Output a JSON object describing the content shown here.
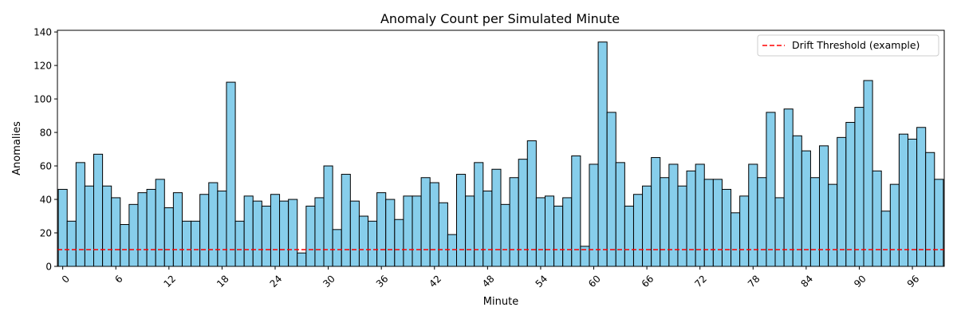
{
  "chart_data": {
    "type": "bar",
    "title": "Anomaly Count per Simulated Minute",
    "xlabel": "Minute",
    "ylabel": "Anomalies",
    "xlim": [
      -0.6,
      99.6
    ],
    "ylim": [
      0,
      141
    ],
    "x_ticks": [
      0,
      6,
      12,
      18,
      24,
      30,
      36,
      42,
      48,
      54,
      60,
      66,
      72,
      78,
      84,
      90,
      96
    ],
    "x_tick_labels": [
      "0",
      "6",
      "12",
      "18",
      "24",
      "30",
      "36",
      "42",
      "48",
      "54",
      "60",
      "66",
      "72",
      "78",
      "84",
      "90",
      "96"
    ],
    "y_ticks": [
      0,
      20,
      40,
      60,
      80,
      100,
      120,
      140
    ],
    "y_tick_labels": [
      "0",
      "20",
      "40",
      "60",
      "80",
      "100",
      "120",
      "140"
    ],
    "x_tick_rotation_deg": 45,
    "grid": false,
    "legend_position": "top-right",
    "series": [
      {
        "values": [
          46,
          27,
          62,
          48,
          67,
          48,
          41,
          25,
          37,
          44,
          46,
          52,
          35,
          44,
          27,
          27,
          43,
          50,
          45,
          110,
          27,
          42,
          39,
          36,
          43,
          39,
          40,
          8,
          36,
          41,
          60,
          22,
          55,
          39,
          30,
          27,
          44,
          40,
          28,
          42,
          42,
          53,
          50,
          38,
          19,
          55,
          42,
          62,
          45,
          58,
          37,
          53,
          64,
          75,
          41,
          42,
          36,
          41,
          66,
          12,
          61,
          134,
          92,
          62,
          36,
          43,
          48,
          65,
          53,
          61,
          48,
          57,
          61,
          52,
          52,
          46,
          32,
          42,
          61,
          53,
          92,
          41,
          94,
          78,
          69,
          53,
          72,
          49,
          77,
          86,
          95,
          111,
          57,
          33,
          49,
          79,
          76,
          83,
          68,
          52
        ],
        "color": "#87ceeb",
        "edgecolor": "#000000"
      }
    ],
    "threshold": {
      "value": 10,
      "label": "Drift Threshold (example)",
      "color": "#ff0000",
      "style": "dashed"
    }
  }
}
